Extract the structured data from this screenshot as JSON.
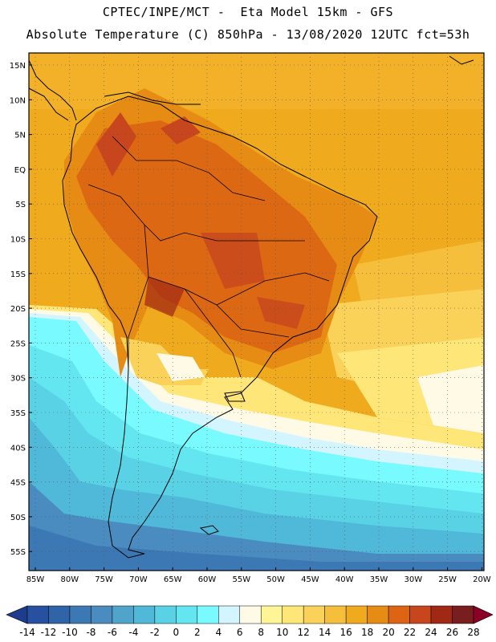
{
  "header": {
    "line1": "CPTEC/INPE/MCT -  Eta Model 15km - GFS",
    "line2": "Absolute Temperature (C) 850hPa - 13/08/2020 12UTC fct=53h"
  },
  "map": {
    "lat_labels": [
      "15N",
      "10N",
      "5N",
      "EQ",
      "5S",
      "10S",
      "15S",
      "20S",
      "25S",
      "30S",
      "35S",
      "40S",
      "45S",
      "50S",
      "55S"
    ],
    "lon_labels": [
      "85W",
      "80W",
      "75W",
      "70W",
      "65W",
      "60W",
      "55W",
      "50W",
      "45W",
      "40W",
      "35W",
      "30W",
      "25W",
      "20W"
    ],
    "grid_style": "dotted",
    "frame_color": "#000000"
  },
  "colorbar": {
    "labels": [
      "-14",
      "-12",
      "-10",
      "-8",
      "-6",
      "-4",
      "-2",
      "0",
      "2",
      "4",
      "6",
      "8",
      "10",
      "12",
      "14",
      "16",
      "18",
      "20",
      "22",
      "24",
      "26",
      "28"
    ],
    "colors": [
      "#1e3c8c",
      "#2850a0",
      "#3064a8",
      "#3c78b4",
      "#4a8cc0",
      "#50a4cc",
      "#50b8d8",
      "#5ad2e6",
      "#64e6f0",
      "#78faff",
      "#d2f5ff",
      "#fffae6",
      "#fff596",
      "#ffe678",
      "#fad25a",
      "#f5bf3c",
      "#f0aa1e",
      "#e68c14",
      "#dc6414",
      "#c8461e",
      "#a02814",
      "#781e1e",
      "#8c0028"
    ]
  }
}
